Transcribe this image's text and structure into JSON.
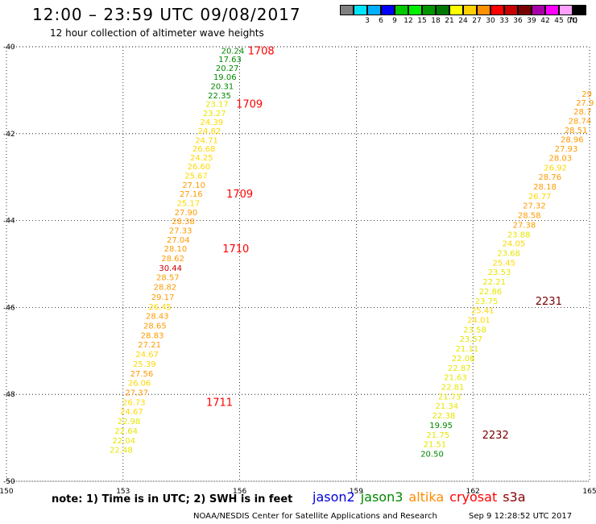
{
  "header": {
    "title": "12:00 – 23:59 UTC 09/08/2017",
    "subtitle": "12 hour collection of altimeter wave heights"
  },
  "colorbar": {
    "unit": "(ft)",
    "swatches": [
      {
        "color": "#808080",
        "label": ""
      },
      {
        "color": "#00e5ff",
        "label": "3"
      },
      {
        "color": "#00b0ff",
        "label": "6"
      },
      {
        "color": "#0000ff",
        "label": "9"
      },
      {
        "color": "#00c800",
        "label": "12"
      },
      {
        "color": "#00ee00",
        "label": "15"
      },
      {
        "color": "#009600",
        "label": "18"
      },
      {
        "color": "#007800",
        "label": "21"
      },
      {
        "color": "#ffff00",
        "label": "24"
      },
      {
        "color": "#ffd000",
        "label": "27"
      },
      {
        "color": "#ff9000",
        "label": "30"
      },
      {
        "color": "#ff0000",
        "label": "33"
      },
      {
        "color": "#c80000",
        "label": "36"
      },
      {
        "color": "#780000",
        "label": "39"
      },
      {
        "color": "#aa00aa",
        "label": "42"
      },
      {
        "color": "#ff00ff",
        "label": "45"
      },
      {
        "color": "#ffa0ff",
        "label": "70"
      },
      {
        "color": "#000000",
        "label": ""
      }
    ]
  },
  "chart_data": {
    "type": "scatter",
    "title": "12:00 – 23:59 UTC 09/08/2017",
    "xlim": [
      150,
      165
    ],
    "ylim": [
      -50,
      -40
    ],
    "xticks": [
      150,
      153,
      156,
      159,
      162,
      165
    ],
    "yticks": [
      -40,
      -42,
      -44,
      -46,
      -48,
      -50
    ],
    "xtick_labels": [
      "150",
      "153",
      "156",
      "159",
      "162",
      "165"
    ],
    "ytick_labels": [
      "-40",
      "-42",
      "-44",
      "-46",
      "-48",
      "-50"
    ],
    "grid": true,
    "colors": {
      "lt24": "#009600",
      "24_27": "#ffd800",
      "27_30": "#ff9a00",
      "gt30": "#c80000",
      "time": "#ff0000",
      "time_dark": "#780000"
    },
    "series": [
      {
        "points": [
          {
            "x": 155.82,
            "y": -40.08,
            "v": "20.24"
          },
          {
            "x": 155.75,
            "y": -40.28,
            "v": "17.63"
          },
          {
            "x": 155.68,
            "y": -40.48,
            "v": "20.27"
          },
          {
            "x": 155.62,
            "y": -40.69,
            "v": "19.06"
          },
          {
            "x": 155.55,
            "y": -40.9,
            "v": "20.31"
          },
          {
            "x": 155.48,
            "y": -41.11,
            "v": "22.35"
          },
          {
            "x": 155.42,
            "y": -41.31,
            "v": "23.17"
          },
          {
            "x": 155.35,
            "y": -41.52,
            "v": "23.27"
          },
          {
            "x": 155.28,
            "y": -41.73,
            "v": "24.39"
          },
          {
            "x": 155.22,
            "y": -41.93,
            "v": "24.82"
          },
          {
            "x": 155.15,
            "y": -42.14,
            "v": "24.71"
          },
          {
            "x": 155.08,
            "y": -42.34,
            "v": "26.68"
          },
          {
            "x": 155.02,
            "y": -42.54,
            "v": "24.25"
          },
          {
            "x": 154.95,
            "y": -42.75,
            "v": "26.60"
          },
          {
            "x": 154.88,
            "y": -42.96,
            "v": "25.67"
          },
          {
            "x": 154.82,
            "y": -43.17,
            "v": "27.10"
          },
          {
            "x": 154.75,
            "y": -43.38,
            "v": "27.16"
          },
          {
            "x": 154.68,
            "y": -43.59,
            "v": "25.17"
          },
          {
            "x": 154.62,
            "y": -43.8,
            "v": "27.90"
          },
          {
            "x": 154.55,
            "y": -44.01,
            "v": "28.38"
          },
          {
            "x": 154.48,
            "y": -44.22,
            "v": "27.33"
          },
          {
            "x": 154.42,
            "y": -44.43,
            "v": "27.04"
          },
          {
            "x": 154.35,
            "y": -44.64,
            "v": "28.10"
          },
          {
            "x": 154.28,
            "y": -44.86,
            "v": "28.62"
          },
          {
            "x": 154.22,
            "y": -45.08,
            "v": "30.44"
          },
          {
            "x": 154.15,
            "y": -45.3,
            "v": "28.57"
          },
          {
            "x": 154.08,
            "y": -45.52,
            "v": "28.82"
          },
          {
            "x": 154.02,
            "y": -45.75,
            "v": "29.17"
          },
          {
            "x": 153.95,
            "y": -45.97,
            "v": "26.45"
          },
          {
            "x": 153.88,
            "y": -46.19,
            "v": "28.43"
          },
          {
            "x": 153.82,
            "y": -46.41,
            "v": "28.65"
          },
          {
            "x": 153.75,
            "y": -46.63,
            "v": "28.83"
          },
          {
            "x": 153.68,
            "y": -46.85,
            "v": "27.21"
          },
          {
            "x": 153.62,
            "y": -47.07,
            "v": "24.67"
          },
          {
            "x": 153.55,
            "y": -47.29,
            "v": "25.39"
          },
          {
            "x": 153.48,
            "y": -47.51,
            "v": "27.56"
          },
          {
            "x": 153.42,
            "y": -47.73,
            "v": "26.06"
          },
          {
            "x": 153.35,
            "y": -47.95,
            "v": "27.37"
          },
          {
            "x": 153.28,
            "y": -48.17,
            "v": "26.73"
          },
          {
            "x": 153.22,
            "y": -48.39,
            "v": "24.67"
          },
          {
            "x": 153.15,
            "y": -48.61,
            "v": "22.98"
          },
          {
            "x": 153.08,
            "y": -48.83,
            "v": "22.64"
          },
          {
            "x": 153.02,
            "y": -49.05,
            "v": "22.04"
          },
          {
            "x": 152.95,
            "y": -49.27,
            "v": "22.48"
          }
        ],
        "times": [
          {
            "x": 156.55,
            "y": -40.08,
            "label": "1708",
            "dark": false
          },
          {
            "x": 156.25,
            "y": -41.31,
            "label": "1709",
            "dark": false
          },
          {
            "x": 156.0,
            "y": -43.38,
            "label": "1709",
            "dark": false
          },
          {
            "x": 155.9,
            "y": -44.64,
            "label": "1710",
            "dark": false
          },
          {
            "x": 155.48,
            "y": -48.17,
            "label": "1711",
            "dark": false
          }
        ]
      },
      {
        "points": [
          {
            "x": 164.93,
            "y": -41.08,
            "v": "29"
          },
          {
            "x": 164.88,
            "y": -41.28,
            "v": "27.9"
          },
          {
            "x": 164.82,
            "y": -41.48,
            "v": "28.7"
          },
          {
            "x": 164.75,
            "y": -41.7,
            "v": "28.74"
          },
          {
            "x": 164.65,
            "y": -41.91,
            "v": "28.51"
          },
          {
            "x": 164.55,
            "y": -42.12,
            "v": "28.96"
          },
          {
            "x": 164.4,
            "y": -42.34,
            "v": "27.93"
          },
          {
            "x": 164.25,
            "y": -42.55,
            "v": "28.03"
          },
          {
            "x": 164.12,
            "y": -42.77,
            "v": "26.92"
          },
          {
            "x": 163.98,
            "y": -42.99,
            "v": "28.76"
          },
          {
            "x": 163.85,
            "y": -43.21,
            "v": "28.18"
          },
          {
            "x": 163.72,
            "y": -43.43,
            "v": "26.77"
          },
          {
            "x": 163.58,
            "y": -43.65,
            "v": "27.32"
          },
          {
            "x": 163.45,
            "y": -43.87,
            "v": "28.58"
          },
          {
            "x": 163.32,
            "y": -44.09,
            "v": "27.38"
          },
          {
            "x": 163.18,
            "y": -44.31,
            "v": "23.88"
          },
          {
            "x": 163.05,
            "y": -44.52,
            "v": "24.05"
          },
          {
            "x": 162.92,
            "y": -44.74,
            "v": "23.68"
          },
          {
            "x": 162.8,
            "y": -44.96,
            "v": "25.45"
          },
          {
            "x": 162.68,
            "y": -45.18,
            "v": "23.53"
          },
          {
            "x": 162.55,
            "y": -45.4,
            "v": "22.21"
          },
          {
            "x": 162.45,
            "y": -45.62,
            "v": "22.86"
          },
          {
            "x": 162.35,
            "y": -45.84,
            "v": "23.75"
          },
          {
            "x": 162.25,
            "y": -46.06,
            "v": "25.41"
          },
          {
            "x": 162.15,
            "y": -46.28,
            "v": "24.01"
          },
          {
            "x": 162.05,
            "y": -46.5,
            "v": "23.58"
          },
          {
            "x": 161.95,
            "y": -46.72,
            "v": "23.57"
          },
          {
            "x": 161.85,
            "y": -46.94,
            "v": "21.11"
          },
          {
            "x": 161.75,
            "y": -47.16,
            "v": "22.08"
          },
          {
            "x": 161.65,
            "y": -47.38,
            "v": "22.87"
          },
          {
            "x": 161.55,
            "y": -47.6,
            "v": "21.63"
          },
          {
            "x": 161.48,
            "y": -47.82,
            "v": "22.81"
          },
          {
            "x": 161.4,
            "y": -48.04,
            "v": "21.73"
          },
          {
            "x": 161.33,
            "y": -48.26,
            "v": "21.34"
          },
          {
            "x": 161.25,
            "y": -48.48,
            "v": "22.38"
          },
          {
            "x": 161.18,
            "y": -48.7,
            "v": "19.95"
          },
          {
            "x": 161.1,
            "y": -48.92,
            "v": "21.75"
          },
          {
            "x": 161.02,
            "y": -49.14,
            "v": "21.51"
          },
          {
            "x": 160.95,
            "y": -49.36,
            "v": "20.50"
          }
        ],
        "times": [
          {
            "x": 163.95,
            "y": -45.84,
            "label": "2231",
            "dark": true
          },
          {
            "x": 162.58,
            "y": -48.92,
            "label": "2232",
            "dark": true
          }
        ]
      }
    ]
  },
  "notes": {
    "text": "note: 1) Time is in UTC; 2) SWH is in feet"
  },
  "legend": {
    "items": [
      {
        "label": "jason2",
        "color": "#0000dd"
      },
      {
        "label": "jason3",
        "color": "#008800"
      },
      {
        "label": "altika",
        "color": "#ff8c00"
      },
      {
        "label": "cryosat",
        "color": "#ff0000"
      },
      {
        "label": "s3a",
        "color": "#880000"
      }
    ]
  },
  "footer": {
    "credit": "NOAA/NESDIS Center for Satellite Applications and Research",
    "timestamp": "Sep  9 12:28:52 UTC 2017"
  }
}
